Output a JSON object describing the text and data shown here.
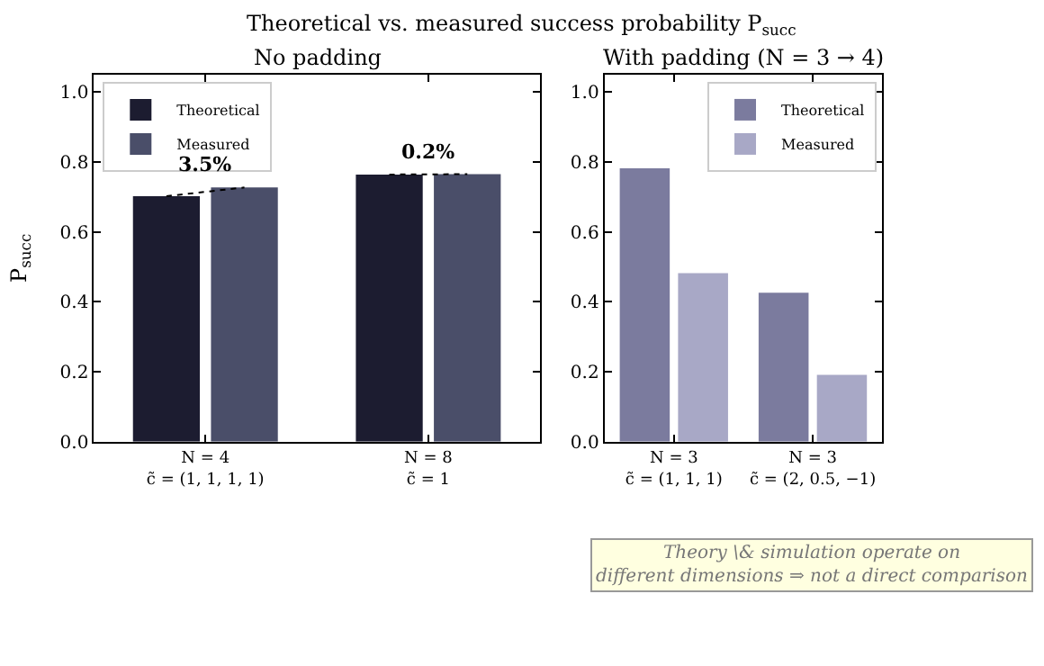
{
  "chart_data": [
    {
      "type": "bar",
      "title": "Theoretical vs. measured success probability P$_{succ}$",
      "subtitle": "No padding",
      "ylabel": "P$_{succ}$",
      "categories": [
        "N = 4\nc̃ = (1, 1, 1, 1)",
        "N = 8\nc̃ = 1"
      ],
      "series": [
        {
          "name": "Theoretical",
          "color": "#1c1c30",
          "values": [
            0.702,
            0.764
          ]
        },
        {
          "name": "Measured",
          "color": "#4a4e69",
          "values": [
            0.727,
            0.765
          ]
        }
      ],
      "ylim": [
        0,
        1.05
      ],
      "yticks": [
        {
          "value": 0,
          "label": "0.0"
        },
        {
          "value": 0.2,
          "label": "0.2"
        },
        {
          "value": 0.4,
          "label": "0.4"
        },
        {
          "value": 0.6,
          "label": "0.6"
        },
        {
          "value": 0.8,
          "label": "0.8"
        },
        {
          "value": 1.0,
          "label": "1.0"
        }
      ],
      "annotations": [
        {
          "text": "3.5%",
          "x": "N = 4\nc̃ = (1, 1, 1, 1)",
          "y": 0.727
        },
        {
          "text": "0.2%",
          "x": "N = 8\nc̃ = 1",
          "y": 0.765
        }
      ],
      "legend": "top left"
    },
    {
      "type": "bar",
      "subtitle": "With padding (N = 3 → 4)",
      "categories": [
        "N = 3\nc̃ = (1, 1, 1)",
        "N = 3\nc̃ = (2, 0.5, −1)"
      ],
      "series": [
        {
          "name": "Theoretical",
          "color": "#7b7b9e",
          "values": [
            0.782,
            0.426
          ]
        },
        {
          "name": "Measured",
          "color": "#a8a8c6",
          "values": [
            0.482,
            0.191
          ]
        }
      ],
      "ylim": [
        0,
        1.05
      ],
      "yticks": [
        {
          "value": 0,
          "label": "0.0"
        },
        {
          "value": 0.2,
          "label": "0.2"
        },
        {
          "value": 0.4,
          "label": "0.4"
        },
        {
          "value": 0.6,
          "label": "0.6"
        },
        {
          "value": 0.8,
          "label": "0.8"
        },
        {
          "value": 1.0,
          "label": "1.0"
        }
      ],
      "annotations": [
        "Theory \\& simulation operate on\ndifferent dimensions ⇒ not a direct comparison"
      ],
      "legend": "top right"
    }
  ]
}
